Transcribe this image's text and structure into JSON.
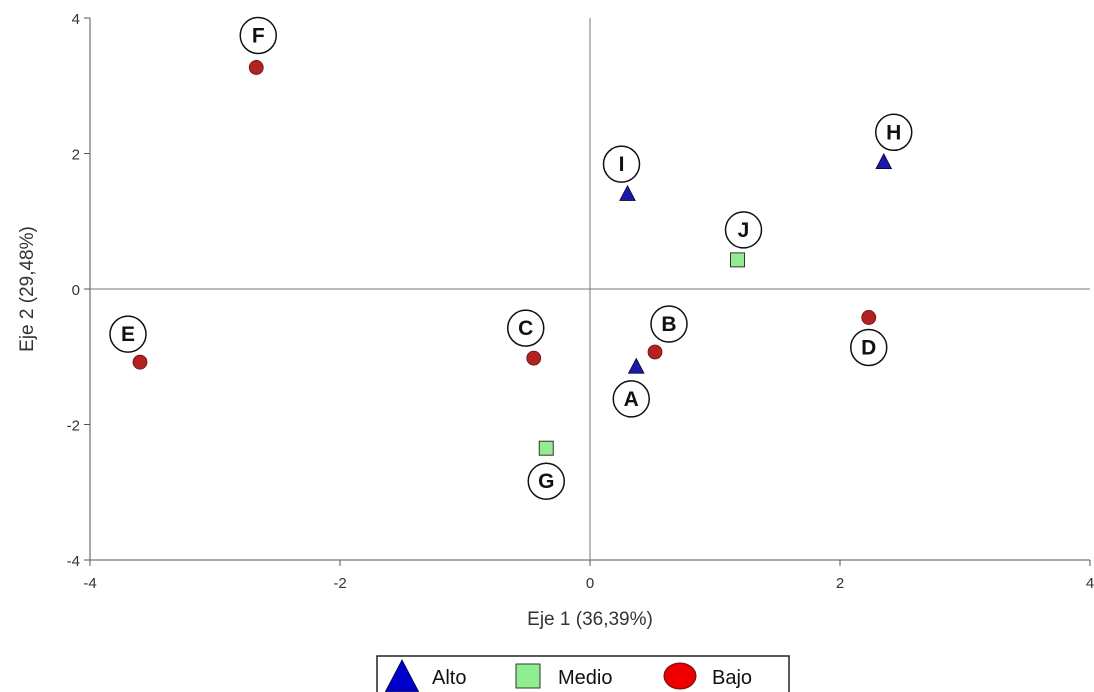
{
  "chart_data": {
    "type": "scatter",
    "xlabel": "Eje 1 (36,39%)",
    "ylabel": "Eje 2 (29,48%)",
    "xlim": [
      -4,
      4
    ],
    "ylim": [
      -4,
      4
    ],
    "x_ticks": [
      -4,
      -2,
      0,
      2,
      4
    ],
    "y_ticks": [
      -4,
      -2,
      0,
      2,
      4
    ],
    "grid": false,
    "reference_lines": [
      "x=0",
      "y=0"
    ],
    "legend_position": "bottom",
    "series": [
      {
        "name": "Alto",
        "marker": "triangle",
        "color": "#1a1aa8",
        "points": [
          {
            "label": "A",
            "x": 0.37,
            "y": -1.15
          },
          {
            "label": "H",
            "x": 2.35,
            "y": 1.87
          },
          {
            "label": "I",
            "x": 0.3,
            "y": 1.4
          }
        ]
      },
      {
        "name": "Medio",
        "marker": "square",
        "color": "#90ee90",
        "points": [
          {
            "label": "G",
            "x": -0.35,
            "y": -2.35
          },
          {
            "label": "J",
            "x": 1.18,
            "y": 0.43
          }
        ]
      },
      {
        "name": "Bajo",
        "marker": "circle",
        "color": "#b22222",
        "points": [
          {
            "label": "B",
            "x": 0.52,
            "y": -0.93
          },
          {
            "label": "C",
            "x": -0.45,
            "y": -1.02
          },
          {
            "label": "D",
            "x": 2.23,
            "y": -0.42
          },
          {
            "label": "E",
            "x": -3.6,
            "y": -1.08
          },
          {
            "label": "F",
            "x": -2.67,
            "y": 3.27
          }
        ]
      }
    ]
  }
}
